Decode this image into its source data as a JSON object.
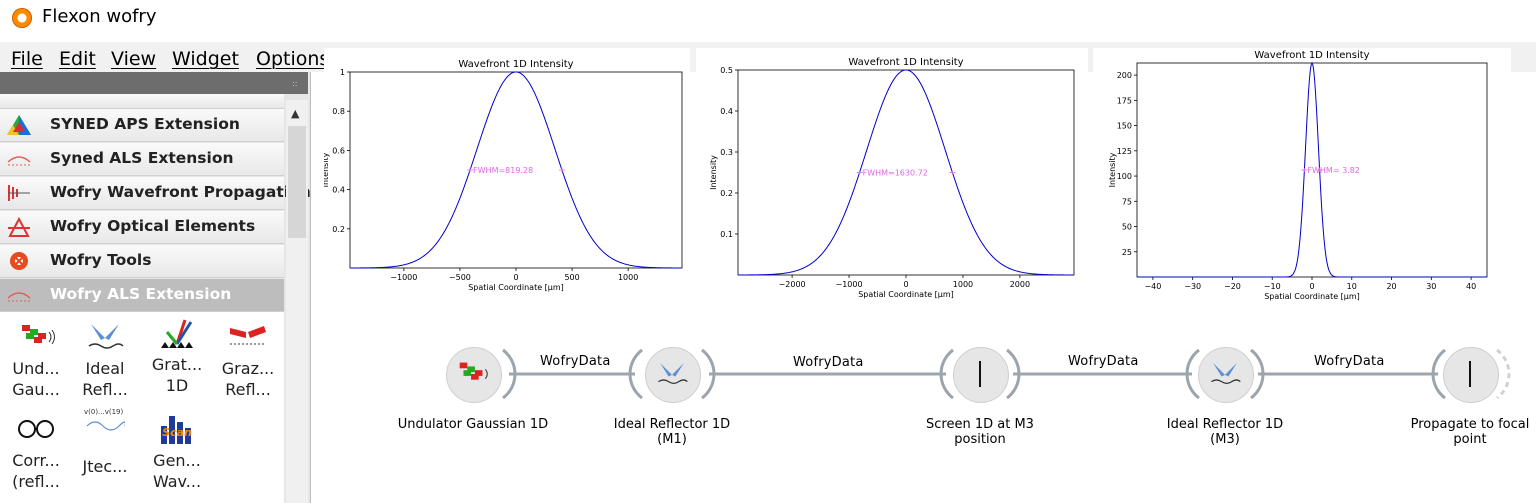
{
  "window": {
    "title": "Flexon wofry"
  },
  "menu": [
    "File",
    "Edit",
    "View",
    "Widget",
    "Options"
  ],
  "sidebar": {
    "categories": [
      {
        "label": "SYNED APS Extension",
        "icon": "syned-aps-icon"
      },
      {
        "label": "Syned ALS Extension",
        "icon": "syned-als-icon"
      },
      {
        "label": "Wofry Wavefront Propagation",
        "icon": "wavefront-propagation-icon"
      },
      {
        "label": "Wofry Optical Elements",
        "icon": "optical-elements-icon"
      },
      {
        "label": "Wofry Tools",
        "icon": "tools-icon"
      },
      {
        "label": "Wofry ALS Extension",
        "icon": "als-extension-icon"
      }
    ],
    "widgets": [
      {
        "label": "Und...\nGau...",
        "icon": "undulator-gaussian-icon"
      },
      {
        "label": "Ideal\nRefl...",
        "icon": "ideal-reflector-icon"
      },
      {
        "label": "Grat...\n1D",
        "icon": "grating-icon"
      },
      {
        "label": "Graz...\nRefl...",
        "icon": "grazing-reflector-icon"
      },
      {
        "label": "Corr...\n(refl...",
        "icon": "correction-icon"
      },
      {
        "label": "Jtec...",
        "icon": "jtec-icon",
        "sub": "v(0)...v(19)"
      },
      {
        "label": "Gen...\nWav...",
        "icon": "scan-icon",
        "sub": "Scan"
      }
    ]
  },
  "plots": [
    {
      "title": "Wavefront 1D Intensity",
      "xlabel": "Spatial Coordinate [$\\mu$m]",
      "ylabel": "Intensity",
      "fwhm_label": "FWHM=819.28"
    },
    {
      "title": "Wavefront 1D Intensity",
      "xlabel": "Spatial Coordinate [$\\mu$m]",
      "ylabel": "Intensity",
      "fwhm_label": "FWHM=1630.72"
    },
    {
      "title": "Wavefront 1D Intensity",
      "xlabel": "Spatial Coordinate [$\\mu$m]",
      "ylabel": "Intensity",
      "fwhm_label": "FWHM= 3.82"
    }
  ],
  "chart_data": [
    {
      "type": "line",
      "title": "Wavefront 1D Intensity",
      "xlabel": "Spatial Coordinate [μm]",
      "ylabel": "Intensity",
      "xlim": [
        -1480,
        1480
      ],
      "ylim": [
        0,
        1.0
      ],
      "xticks": [
        -1000,
        -500,
        0,
        500,
        1000
      ],
      "yticks": [
        0.2,
        0.4,
        0.6,
        0.8,
        1.0
      ],
      "series": [
        {
          "shape": "gaussian",
          "peak": 1.0,
          "center": 0,
          "fwhm": 819.28
        }
      ],
      "annotation": "FWHM=819.28",
      "color": "#0000cc",
      "annotation_color": "#e066e0"
    },
    {
      "type": "line",
      "title": "Wavefront 1D Intensity",
      "xlabel": "Spatial Coordinate [μm]",
      "ylabel": "Intensity",
      "xlim": [
        -2950,
        2950
      ],
      "ylim": [
        0,
        0.5
      ],
      "xticks": [
        -2000,
        -1000,
        0,
        1000,
        2000
      ],
      "yticks": [
        0.1,
        0.2,
        0.3,
        0.4,
        0.5
      ],
      "series": [
        {
          "shape": "gaussian",
          "peak": 0.5,
          "center": 0,
          "fwhm": 1630.72
        }
      ],
      "annotation": "FWHM=1630.72",
      "color": "#0000cc",
      "annotation_color": "#e066e0"
    },
    {
      "type": "line",
      "title": "Wavefront 1D Intensity",
      "xlabel": "Spatial Coordinate [μm]",
      "ylabel": "Intensity",
      "xlim": [
        -44,
        44
      ],
      "ylim": [
        0,
        212
      ],
      "xticks": [
        -40,
        -30,
        -20,
        -10,
        0,
        10,
        20,
        30,
        40
      ],
      "yticks": [
        25,
        50,
        75,
        100,
        125,
        150,
        175,
        200
      ],
      "series": [
        {
          "shape": "gaussian",
          "peak": 212,
          "center": 0,
          "fwhm": 3.82
        }
      ],
      "annotation": "FWHM= 3.82",
      "color": "#0000cc",
      "annotation_color": "#e066e0"
    }
  ],
  "workflow": {
    "nodes": [
      {
        "label": "Undulator Gaussian 1D",
        "icon": "undulator-gaussian-icon"
      },
      {
        "label": "Ideal Reflector 1D\n(M1)",
        "icon": "ideal-reflector-icon"
      },
      {
        "label": "Screen 1D at M3\nposition",
        "icon": "screen-icon"
      },
      {
        "label": "Ideal Reflector 1D\n(M3)",
        "icon": "ideal-reflector-icon"
      },
      {
        "label": "Propagate to focal\npoint",
        "icon": "screen-icon"
      }
    ],
    "links": [
      "WofryData",
      "WofryData",
      "WofryData",
      "WofryData"
    ]
  }
}
